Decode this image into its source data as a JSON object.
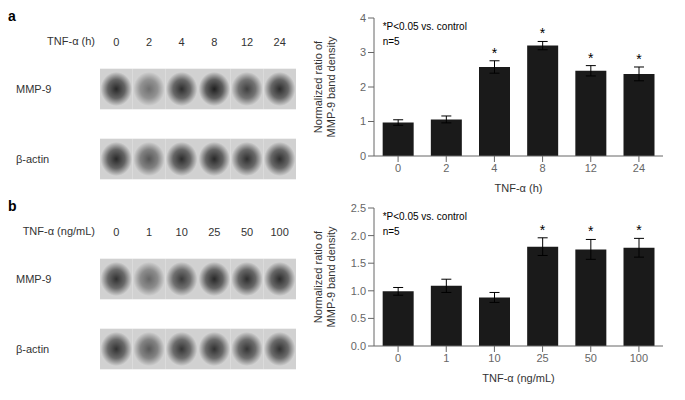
{
  "chart_data": [
    {
      "type": "blot",
      "title": "a",
      "xlabel": "TNF-α (h)",
      "categories": [
        "0",
        "2",
        "4",
        "8",
        "12",
        "24"
      ],
      "series": [
        {
          "name": "MMP-9",
          "values": [
            0.95,
            0.55,
            0.92,
            1.0,
            0.82,
            0.93
          ]
        },
        {
          "name": "β-actin",
          "values": [
            0.95,
            0.7,
            0.93,
            0.95,
            0.91,
            0.92
          ]
        }
      ]
    },
    {
      "type": "bar",
      "xlabel": "TNF-α (h)",
      "ylabel": "Normalized ratio of\nMMP-9 band density",
      "categories": [
        "0",
        "2",
        "4",
        "8",
        "12",
        "24"
      ],
      "values": [
        0.97,
        1.06,
        2.58,
        3.2,
        2.47,
        2.38
      ],
      "errors": [
        0.08,
        0.1,
        0.18,
        0.12,
        0.15,
        0.2
      ],
      "significance": [
        null,
        null,
        "*",
        "*",
        "*",
        "*"
      ],
      "color": "#1a1a1a",
      "ylim": [
        0,
        4.0
      ],
      "yticks": [
        0,
        1,
        2,
        3,
        4
      ],
      "annotation": "*P<0.05 vs. control\nn=5"
    },
    {
      "type": "blot",
      "title": "b",
      "xlabel": "TNF-α (ng/mL)",
      "categories": [
        "0",
        "1",
        "10",
        "25",
        "50",
        "100"
      ],
      "series": [
        {
          "name": "MMP-9",
          "values": [
            0.9,
            0.6,
            0.85,
            0.95,
            0.92,
            0.93
          ]
        },
        {
          "name": "β-actin",
          "values": [
            0.9,
            0.68,
            0.88,
            0.9,
            0.88,
            0.9
          ]
        }
      ]
    },
    {
      "type": "bar",
      "xlabel": "TNF-α (ng/mL)",
      "ylabel": "Normalized ratio of\nMMP-9 band density",
      "categories": [
        "0",
        "1",
        "10",
        "25",
        "50",
        "100"
      ],
      "values": [
        0.99,
        1.09,
        0.88,
        1.8,
        1.75,
        1.78
      ],
      "errors": [
        0.07,
        0.12,
        0.09,
        0.16,
        0.18,
        0.17
      ],
      "significance": [
        null,
        null,
        null,
        "*",
        "*",
        "*"
      ],
      "color": "#1a1a1a",
      "ylim": [
        0,
        2.5
      ],
      "yticks": [
        {
          "value": 0,
          "label": "0.0"
        },
        0.5,
        {
          "value": 1,
          "label": "1.0"
        },
        1.5,
        {
          "value": 2,
          "label": "2.0"
        },
        2.5
      ],
      "annotation": "*P<0.05 vs. control\nn=5"
    }
  ]
}
